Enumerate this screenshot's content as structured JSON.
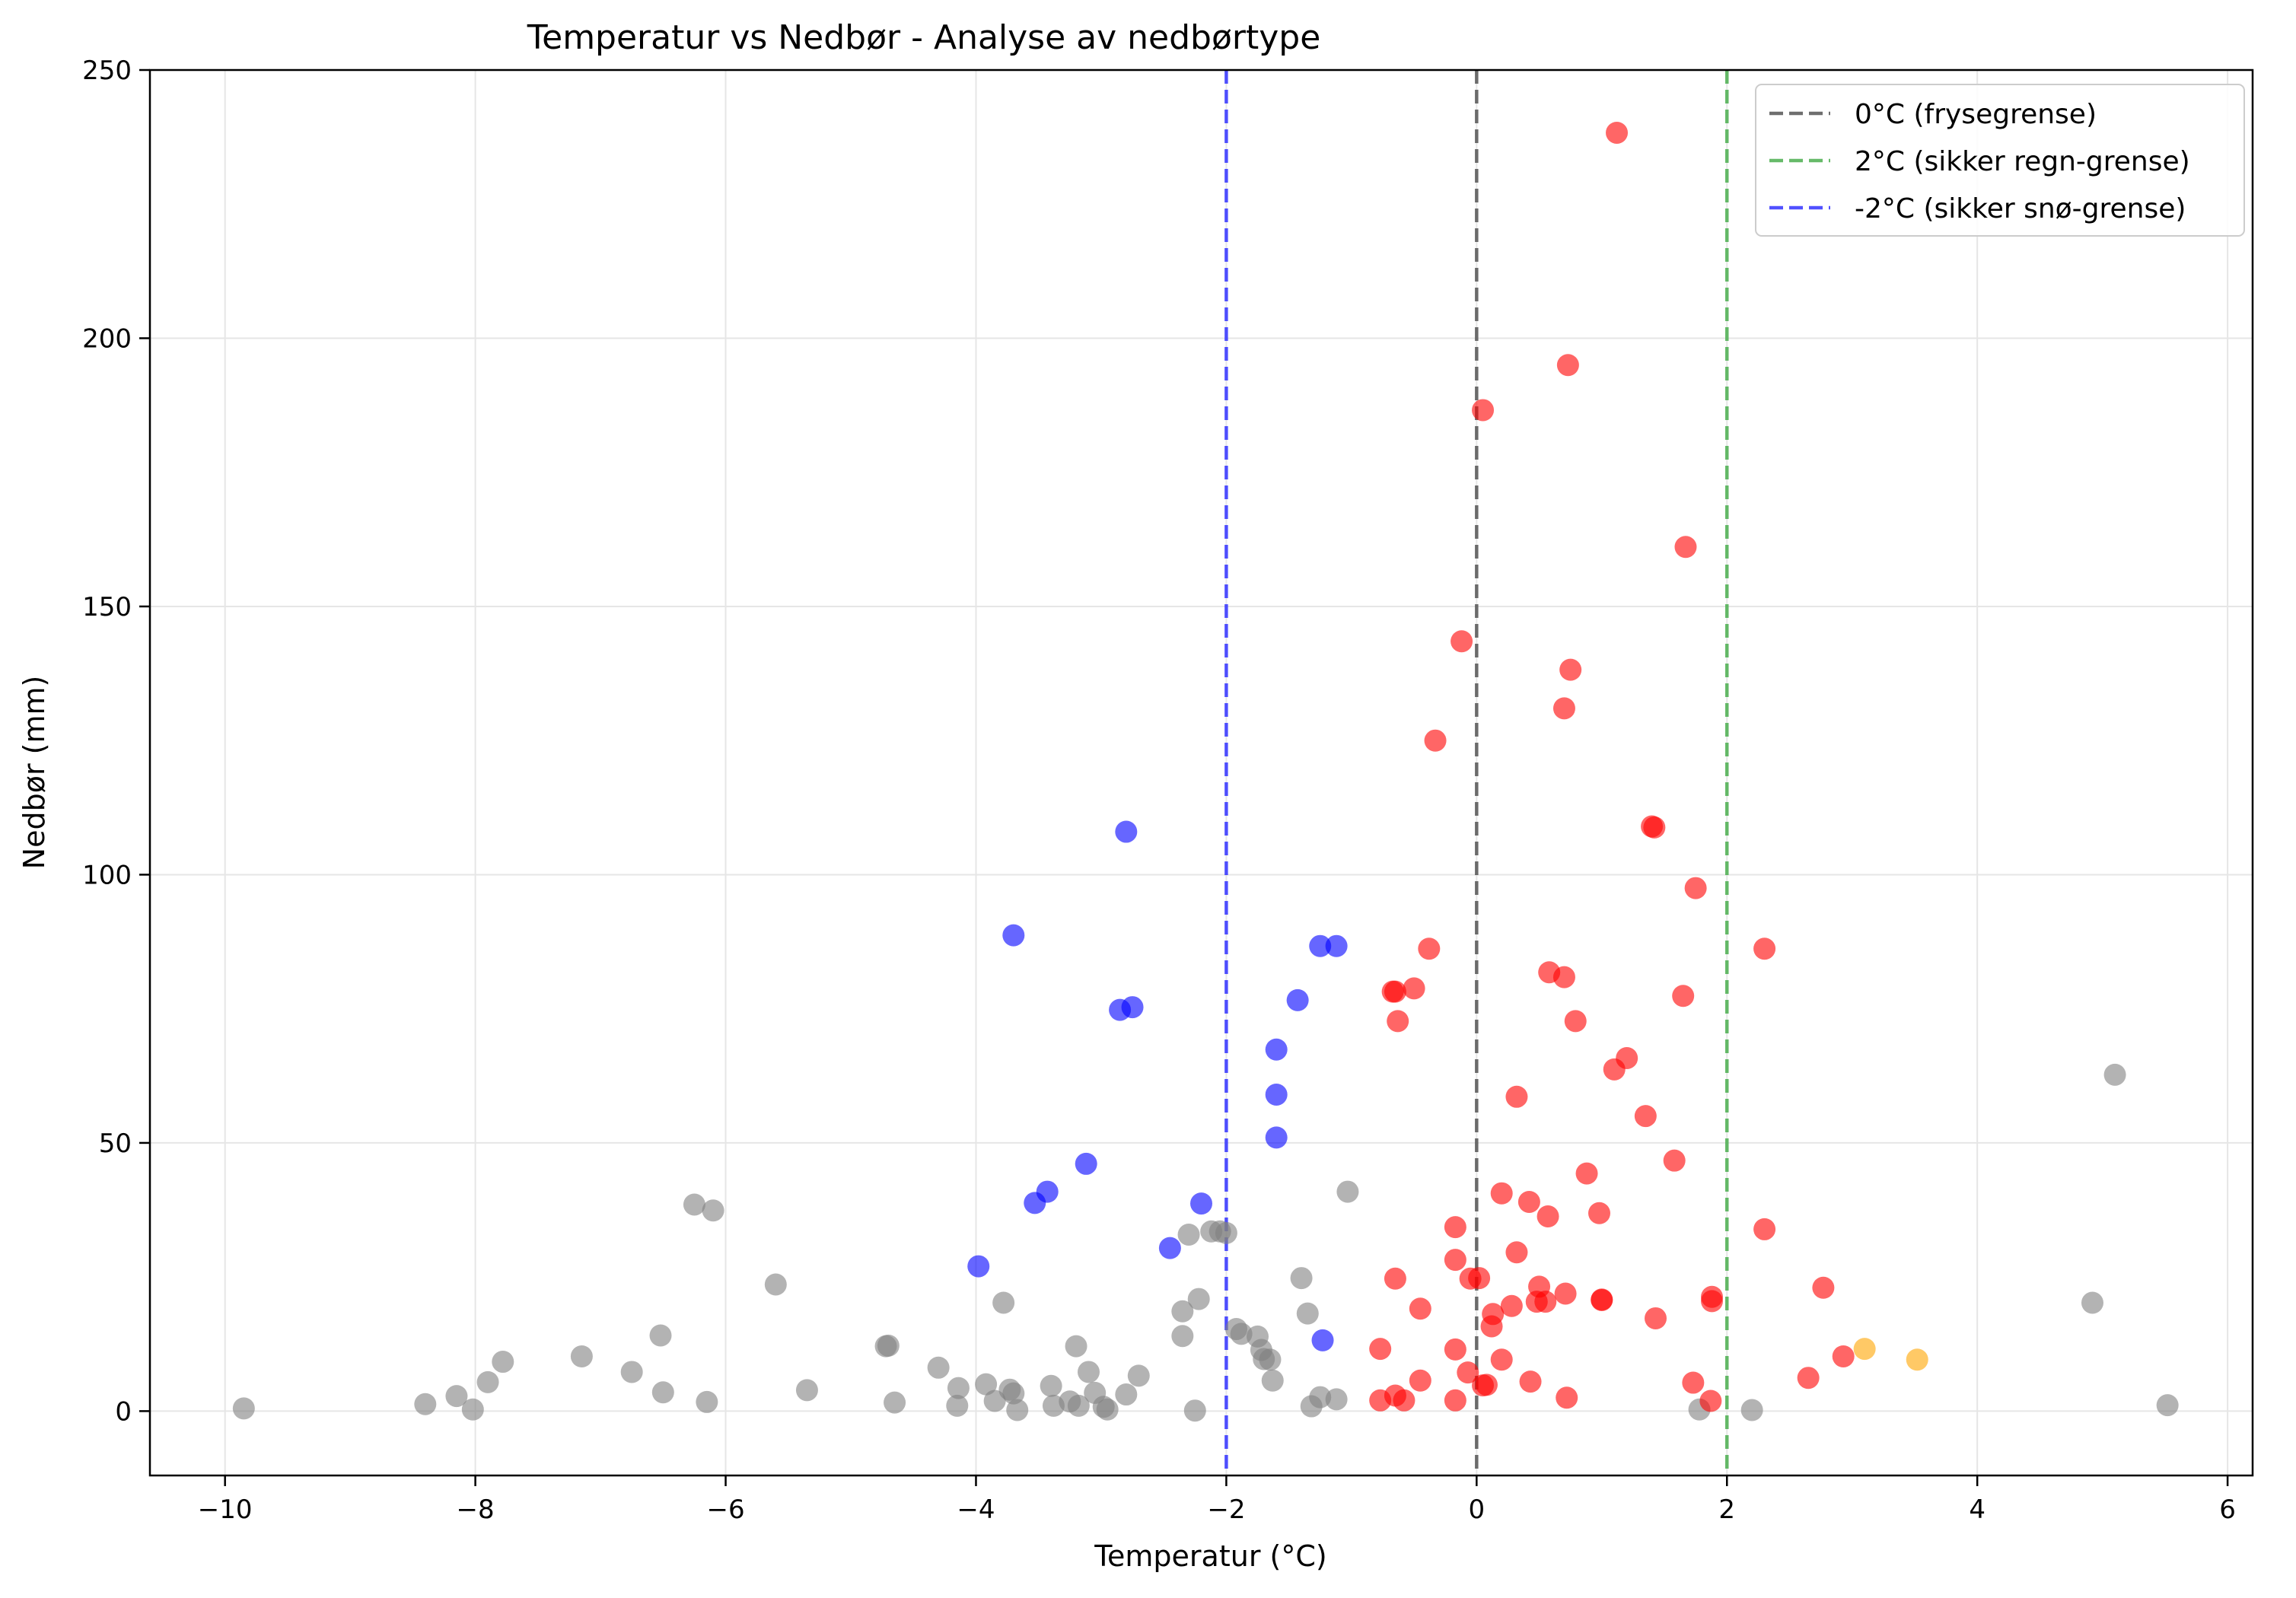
{
  "chart_data": {
    "type": "scatter",
    "title": "Temperatur vs Nedbør - Analyse av nedbørtype",
    "xlabel": "Temperatur (°C)",
    "ylabel": "Nedbør (mm)",
    "xlim": [
      -10.6,
      6.2
    ],
    "ylim": [
      -12,
      250
    ],
    "xticks": [
      -10,
      -8,
      -6,
      -4,
      -2,
      0,
      2,
      4,
      6
    ],
    "yticks": [
      0,
      50,
      100,
      150,
      200,
      250
    ],
    "grid": true,
    "legend_position": "top-right",
    "reference_lines": [
      {
        "x": 0,
        "label": "0°C (frysegrense)",
        "color": "#555555"
      },
      {
        "x": 2,
        "label": "2°C (sikker regn-grense)",
        "color": "#4caf50"
      },
      {
        "x": -2,
        "label": "-2°C (sikker snø-grense)",
        "color": "#3333ff"
      }
    ],
    "series": [
      {
        "color": "#808080",
        "points": [
          [
            -9.85,
            0.5
          ],
          [
            -8.4,
            1.3
          ],
          [
            -8.15,
            2.8
          ],
          [
            -8.02,
            0.3
          ],
          [
            -7.9,
            5.4
          ],
          [
            -7.78,
            9.2
          ],
          [
            -7.15,
            10.2
          ],
          [
            -6.75,
            7.3
          ],
          [
            -6.52,
            14.1
          ],
          [
            -6.5,
            3.5
          ],
          [
            -6.25,
            38.5
          ],
          [
            -6.15,
            1.7
          ],
          [
            -6.1,
            37.4
          ],
          [
            -5.6,
            23.6
          ],
          [
            -5.35,
            3.9
          ],
          [
            -4.72,
            12.1
          ],
          [
            -4.7,
            12.2
          ],
          [
            -4.65,
            1.6
          ],
          [
            -4.3,
            8.1
          ],
          [
            -4.15,
            1.0
          ],
          [
            -4.14,
            4.3
          ],
          [
            -3.92,
            5.0
          ],
          [
            -3.85,
            1.9
          ],
          [
            -3.78,
            20.2
          ],
          [
            -3.73,
            4.0
          ],
          [
            -3.7,
            3.3
          ],
          [
            -3.67,
            0.2
          ],
          [
            -3.4,
            4.7
          ],
          [
            -3.38,
            1.0
          ],
          [
            -3.25,
            1.8
          ],
          [
            -3.2,
            12.1
          ],
          [
            -3.18,
            1.0
          ],
          [
            -3.1,
            7.3
          ],
          [
            -3.05,
            3.4
          ],
          [
            -2.98,
            0.8
          ],
          [
            -2.95,
            0.3
          ],
          [
            -2.8,
            3.1
          ],
          [
            -2.7,
            6.6
          ],
          [
            -2.35,
            18.6
          ],
          [
            -2.35,
            14.0
          ],
          [
            -2.3,
            32.9
          ],
          [
            -2.25,
            0.1
          ],
          [
            -2.22,
            20.9
          ],
          [
            -2.12,
            33.5
          ],
          [
            -2.05,
            33.5
          ],
          [
            -2.0,
            33.2
          ],
          [
            -1.92,
            15.3
          ],
          [
            -1.88,
            14.4
          ],
          [
            -1.75,
            13.9
          ],
          [
            -1.72,
            11.4
          ],
          [
            -1.7,
            9.7
          ],
          [
            -1.65,
            9.6
          ],
          [
            -1.63,
            5.7
          ],
          [
            -1.4,
            24.8
          ],
          [
            -1.35,
            18.2
          ],
          [
            -1.32,
            0.9
          ],
          [
            -1.25,
            2.6
          ],
          [
            -1.12,
            2.2
          ],
          [
            -1.03,
            40.9
          ],
          [
            1.78,
            0.3
          ],
          [
            2.2,
            0.2
          ],
          [
            4.92,
            20.2
          ],
          [
            5.1,
            62.7
          ],
          [
            5.52,
            1.1
          ]
        ]
      },
      {
        "color": "#0000ff",
        "points": [
          [
            -3.98,
            27.0
          ],
          [
            -3.7,
            88.7
          ],
          [
            -3.53,
            38.8
          ],
          [
            -3.43,
            40.9
          ],
          [
            -3.12,
            46.1
          ],
          [
            -2.85,
            74.8
          ],
          [
            -2.8,
            108.0
          ],
          [
            -2.75,
            75.3
          ],
          [
            -2.45,
            30.4
          ],
          [
            -2.2,
            38.7
          ],
          [
            -1.6,
            67.4
          ],
          [
            -1.6,
            59.0
          ],
          [
            -1.6,
            51.0
          ],
          [
            -1.43,
            76.6
          ],
          [
            -1.25,
            86.7
          ],
          [
            -1.23,
            13.2
          ],
          [
            -1.12,
            86.7
          ]
        ]
      },
      {
        "color": "#ff0000",
        "points": [
          [
            -0.77,
            11.6
          ],
          [
            -0.77,
            2.0
          ],
          [
            -0.67,
            78.2
          ],
          [
            -0.65,
            78.2
          ],
          [
            -0.65,
            24.7
          ],
          [
            -0.65,
            2.9
          ],
          [
            -0.63,
            72.7
          ],
          [
            -0.58,
            2.0
          ],
          [
            -0.5,
            78.8
          ],
          [
            -0.45,
            19.1
          ],
          [
            -0.45,
            5.7
          ],
          [
            -0.38,
            86.2
          ],
          [
            -0.33,
            125.0
          ],
          [
            -0.17,
            34.3
          ],
          [
            -0.17,
            28.2
          ],
          [
            -0.17,
            11.5
          ],
          [
            -0.17,
            2.0
          ],
          [
            -0.12,
            143.5
          ],
          [
            -0.07,
            7.2
          ],
          [
            -0.05,
            24.7
          ],
          [
            0.02,
            24.8
          ],
          [
            0.05,
            4.8
          ],
          [
            0.05,
            186.6
          ],
          [
            0.08,
            4.9
          ],
          [
            0.12,
            15.8
          ],
          [
            0.13,
            18.1
          ],
          [
            0.2,
            9.6
          ],
          [
            0.2,
            40.6
          ],
          [
            0.28,
            19.6
          ],
          [
            0.32,
            29.6
          ],
          [
            0.32,
            58.6
          ],
          [
            0.42,
            39.0
          ],
          [
            0.43,
            5.5
          ],
          [
            0.48,
            20.4
          ],
          [
            0.5,
            23.2
          ],
          [
            0.55,
            20.4
          ],
          [
            0.57,
            36.3
          ],
          [
            0.58,
            81.8
          ],
          [
            0.7,
            80.9
          ],
          [
            0.7,
            131.0
          ],
          [
            0.71,
            21.9
          ],
          [
            0.72,
            2.5
          ],
          [
            0.73,
            195.0
          ],
          [
            0.75,
            138.2
          ],
          [
            0.79,
            72.7
          ],
          [
            0.88,
            44.3
          ],
          [
            0.98,
            36.9
          ],
          [
            1.0,
            20.7
          ],
          [
            1.0,
            20.8
          ],
          [
            1.1,
            63.7
          ],
          [
            1.12,
            238.3
          ],
          [
            1.2,
            65.8
          ],
          [
            1.35,
            55.0
          ],
          [
            1.4,
            109.0
          ],
          [
            1.42,
            108.8
          ],
          [
            1.43,
            17.3
          ],
          [
            1.58,
            46.7
          ],
          [
            1.65,
            77.4
          ],
          [
            1.67,
            161.1
          ],
          [
            1.73,
            5.3
          ],
          [
            1.75,
            97.5
          ],
          [
            1.87,
            1.9
          ],
          [
            1.88,
            20.5
          ],
          [
            1.88,
            21.3
          ],
          [
            2.3,
            86.2
          ],
          [
            2.3,
            33.9
          ],
          [
            2.65,
            6.2
          ],
          [
            2.77,
            23.0
          ],
          [
            2.93,
            10.2
          ]
        ]
      },
      {
        "color": "#ffa500",
        "points": [
          [
            3.1,
            11.6
          ],
          [
            3.52,
            9.6
          ]
        ]
      }
    ]
  }
}
